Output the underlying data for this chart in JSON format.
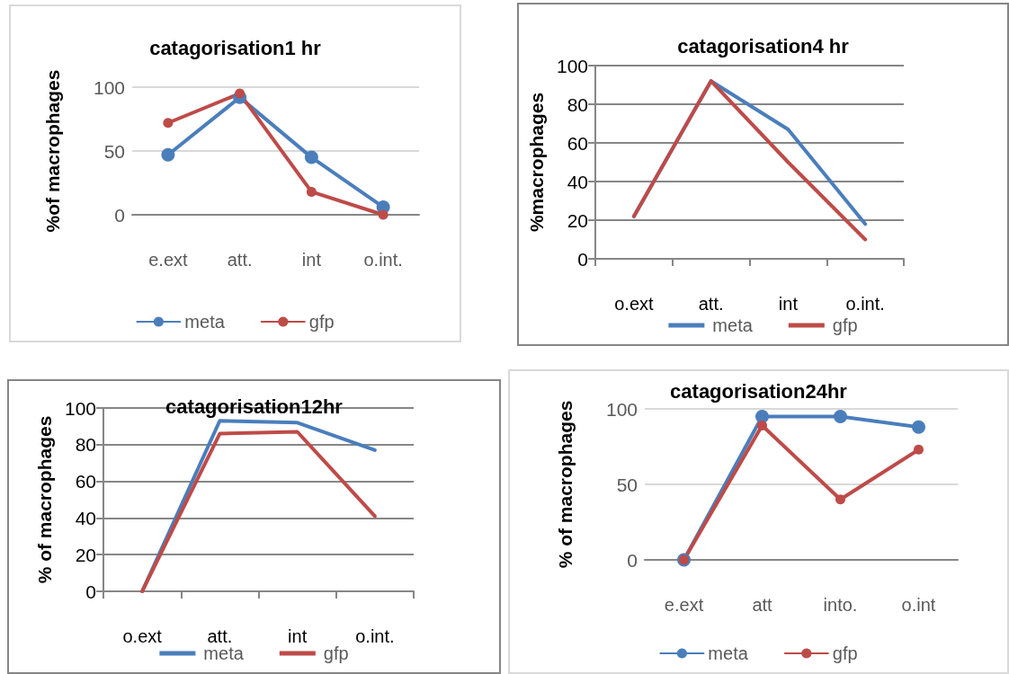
{
  "chart_data": [
    {
      "type": "line",
      "title": "catagorisation1 hr",
      "ylabel": "%of macrophages",
      "categories": [
        "e.ext",
        "att.",
        "int",
        "o.int."
      ],
      "series": [
        {
          "name": "meta",
          "color": "#4a7ebb",
          "values": [
            47,
            92,
            45,
            6
          ]
        },
        {
          "name": "gfp",
          "color": "#be4b48",
          "values": [
            72,
            95,
            18,
            0
          ]
        }
      ],
      "ylim": [
        0,
        100
      ],
      "yticks": [
        0,
        50,
        100
      ],
      "grid": "y",
      "legend": "bottom",
      "marker": "circle"
    },
    {
      "type": "line",
      "title": "catagorisation4 hr",
      "ylabel": "%macrophages",
      "categories": [
        "o.ext",
        "att.",
        "int",
        "o.int."
      ],
      "series": [
        {
          "name": "meta",
          "color": "#4a7ebb",
          "values": [
            22,
            92,
            67,
            18
          ]
        },
        {
          "name": "gfp",
          "color": "#be4b48",
          "values": [
            22,
            92,
            50,
            10
          ]
        }
      ],
      "ylim": [
        0,
        100
      ],
      "yticks": [
        0,
        20,
        40,
        60,
        80,
        100
      ],
      "grid": "y",
      "legend": "bottom",
      "marker": "none"
    },
    {
      "type": "line",
      "title": "catagorisation12hr",
      "ylabel": "% of macrophages",
      "categories": [
        "o.ext",
        "att.",
        "int",
        "o.int."
      ],
      "series": [
        {
          "name": "meta",
          "color": "#4a7ebb",
          "values": [
            0,
            93,
            92,
            77
          ]
        },
        {
          "name": "gfp",
          "color": "#be4b48",
          "values": [
            0,
            86,
            87,
            41
          ]
        }
      ],
      "ylim": [
        0,
        100
      ],
      "yticks": [
        0,
        20,
        40,
        60,
        80,
        100
      ],
      "grid": "y",
      "legend": "bottom",
      "marker": "none"
    },
    {
      "type": "line",
      "title": "catagorisation24hr",
      "ylabel": "% of macrophages",
      "categories": [
        "e.ext",
        "att",
        "into.",
        "o.int"
      ],
      "series": [
        {
          "name": "meta",
          "color": "#4a7ebb",
          "values": [
            0,
            95,
            95,
            88
          ]
        },
        {
          "name": "gfp",
          "color": "#be4b48",
          "values": [
            0,
            89,
            40,
            73
          ]
        }
      ],
      "ylim": [
        0,
        100
      ],
      "yticks": [
        0,
        50,
        100
      ],
      "grid": "y",
      "legend": "bottom",
      "marker": "circle"
    }
  ]
}
